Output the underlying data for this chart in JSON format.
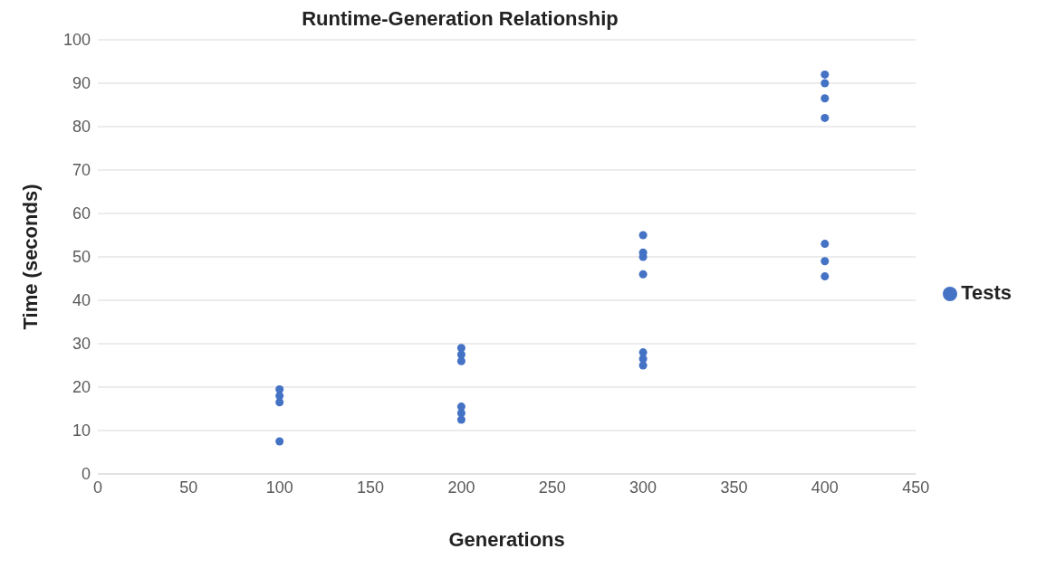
{
  "chart_data": {
    "type": "scatter",
    "title": "Runtime-Generation Relationship",
    "xlabel": "Generations",
    "ylabel": "Time (seconds)",
    "x": [
      100,
      100,
      100,
      100,
      200,
      200,
      200,
      200,
      200,
      200,
      300,
      300,
      300,
      300,
      300,
      300,
      300,
      400,
      400,
      400,
      400,
      400,
      400,
      400
    ],
    "series": [
      {
        "name": "Tests",
        "color": "#4472c4",
        "values": [
          19.5,
          18,
          16.5,
          7.5,
          29,
          27.5,
          26,
          15.5,
          14,
          12.5,
          55,
          51,
          50,
          46,
          28,
          26.5,
          25,
          92,
          90,
          86.5,
          82,
          53,
          49,
          45.5
        ]
      }
    ],
    "xlim": [
      0,
      450
    ],
    "xticks": [
      0,
      50,
      100,
      150,
      200,
      250,
      300,
      350,
      400,
      450
    ],
    "ylim": [
      0,
      100
    ],
    "yticks": [
      0,
      10,
      20,
      30,
      40,
      50,
      60,
      70,
      80,
      90,
      100
    ],
    "grid": "y",
    "legend": "right",
    "marker": "circle"
  }
}
